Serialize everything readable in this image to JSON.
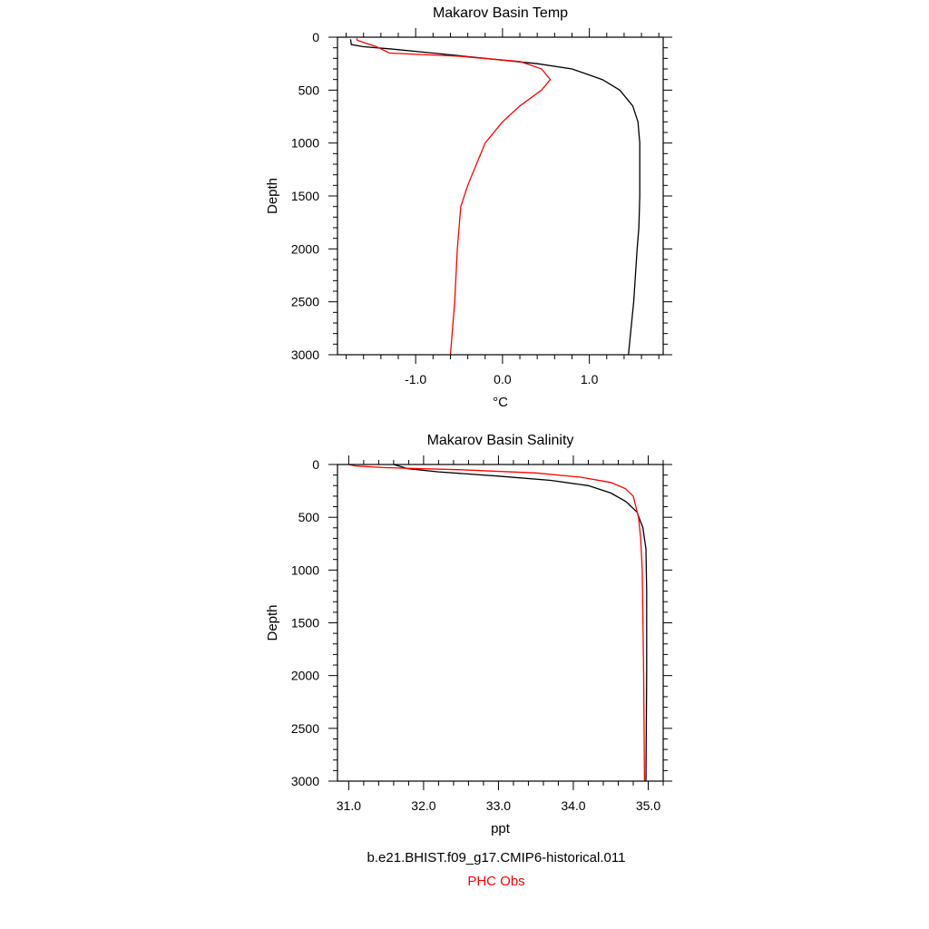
{
  "chart_data": [
    {
      "type": "line",
      "title": "Makarov Basin Temp",
      "xlabel": "°C",
      "ylabel": "Depth",
      "xlim": [
        -1.9,
        1.85
      ],
      "ylim": [
        3000,
        0
      ],
      "x_ticks": [
        -1.0,
        0.0,
        1.0
      ],
      "x_tick_labels": [
        "-1.0",
        "0.0",
        "1.0"
      ],
      "y_ticks": [
        0,
        500,
        1000,
        1500,
        2000,
        2500,
        3000
      ],
      "y_tick_labels": [
        "0",
        "500",
        "1000",
        "1500",
        "2000",
        "2500",
        "3000"
      ],
      "series": [
        {
          "name": "b.e21.BHIST.f09_g17.CMIP6-historical.011",
          "color": "#000000",
          "points": [
            [
              -1.75,
              20
            ],
            [
              -1.74,
              70
            ],
            [
              -1.6,
              90
            ],
            [
              -1.3,
              110
            ],
            [
              -0.8,
              150
            ],
            [
              -0.2,
              200
            ],
            [
              0.4,
              250
            ],
            [
              0.8,
              300
            ],
            [
              1.15,
              400
            ],
            [
              1.35,
              500
            ],
            [
              1.5,
              650
            ],
            [
              1.56,
              800
            ],
            [
              1.58,
              1000
            ],
            [
              1.58,
              1500
            ],
            [
              1.57,
              1800
            ],
            [
              1.55,
              2000
            ],
            [
              1.51,
              2500
            ],
            [
              1.45,
              3000
            ]
          ]
        },
        {
          "name": "PHC Obs",
          "color": "#ff0000",
          "points": [
            [
              -1.68,
              10
            ],
            [
              -1.67,
              30
            ],
            [
              -1.6,
              50
            ],
            [
              -1.45,
              90
            ],
            [
              -1.3,
              150
            ],
            [
              -0.5,
              180
            ],
            [
              0.2,
              230
            ],
            [
              0.45,
              300
            ],
            [
              0.55,
              400
            ],
            [
              0.45,
              500
            ],
            [
              0.2,
              650
            ],
            [
              0.0,
              800
            ],
            [
              -0.2,
              1000
            ],
            [
              -0.4,
              1400
            ],
            [
              -0.48,
              1600
            ],
            [
              -0.52,
              2000
            ],
            [
              -0.55,
              2500
            ],
            [
              -0.6,
              3000
            ]
          ]
        }
      ]
    },
    {
      "type": "line",
      "title": "Makarov Basin Salinity",
      "xlabel": "ppt",
      "ylabel": "Depth",
      "xlim": [
        30.85,
        35.2
      ],
      "ylim": [
        3000,
        0
      ],
      "x_ticks": [
        31.0,
        32.0,
        33.0,
        34.0,
        35.0
      ],
      "x_tick_labels": [
        "31.0",
        "32.0",
        "33.0",
        "34.0",
        "35.0"
      ],
      "y_ticks": [
        0,
        500,
        1000,
        1500,
        2000,
        2500,
        3000
      ],
      "y_tick_labels": [
        "0",
        "500",
        "1000",
        "1500",
        "2000",
        "2500",
        "3000"
      ],
      "series": [
        {
          "name": "b.e21.BHIST.f09_g17.CMIP6-historical.011",
          "color": "#000000",
          "points": [
            [
              31.6,
              0
            ],
            [
              31.8,
              40
            ],
            [
              32.2,
              70
            ],
            [
              33.0,
              110
            ],
            [
              33.7,
              150
            ],
            [
              34.2,
              200
            ],
            [
              34.5,
              270
            ],
            [
              34.7,
              350
            ],
            [
              34.85,
              450
            ],
            [
              34.93,
              600
            ],
            [
              34.97,
              800
            ],
            [
              34.98,
              1200
            ],
            [
              34.98,
              2000
            ],
            [
              34.97,
              3000
            ]
          ]
        },
        {
          "name": "PHC Obs",
          "color": "#ff0000",
          "points": [
            [
              31.0,
              0
            ],
            [
              31.1,
              15
            ],
            [
              31.5,
              30
            ],
            [
              32.5,
              50
            ],
            [
              33.5,
              80
            ],
            [
              34.1,
              120
            ],
            [
              34.5,
              170
            ],
            [
              34.7,
              230
            ],
            [
              34.8,
              300
            ],
            [
              34.87,
              500
            ],
            [
              34.9,
              700
            ],
            [
              34.92,
              1000
            ],
            [
              34.93,
              1500
            ],
            [
              34.94,
              2000
            ],
            [
              34.95,
              3000
            ]
          ]
        }
      ]
    }
  ],
  "legend": {
    "model_label": "b.e21.BHIST.f09_g17.CMIP6-historical.011",
    "model_color": "#000000",
    "obs_label": "PHC Obs",
    "obs_color": "#ff0000"
  }
}
